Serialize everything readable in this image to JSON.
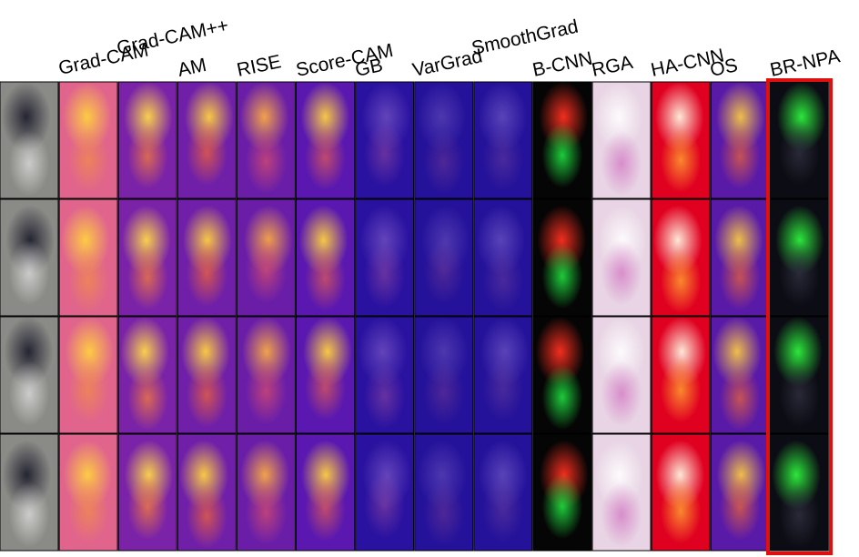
{
  "figure": {
    "column_labels": [
      "Grad-CAM",
      "Grad-CAM++",
      "AM",
      "RISE",
      "Score-CAM",
      "GB",
      "VarGrad",
      "SmoothGrad",
      "B-CNN",
      "RGA",
      "HA-CNN",
      "OS",
      "BR-NPA"
    ]
  }
}
